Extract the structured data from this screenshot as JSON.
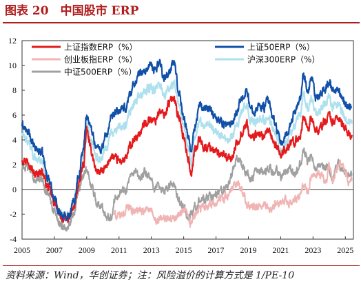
{
  "figure": {
    "title": "图表 20　中国股市 ERP",
    "source": "资料来源：Wind，华创证券；注：风险溢价的计算方式是 1/PE-10"
  },
  "colors": {
    "title": "#b01c1c",
    "rule": "#b01c1c"
  },
  "chart_data": {
    "type": "line",
    "title": "",
    "xlabel": "",
    "ylabel": "",
    "xlim": [
      2005.0,
      2025.5
    ],
    "ylim": [
      -4,
      12
    ],
    "x_ticks": [
      "2005",
      "2007",
      "2009",
      "2011",
      "2013",
      "2015",
      "2017",
      "2019",
      "2021",
      "2023",
      "2025"
    ],
    "y_ticks": [
      "-4",
      "-2",
      "0",
      "2",
      "4",
      "6",
      "8",
      "10",
      "12"
    ],
    "grid": false,
    "legend_position": "top",
    "series": [
      {
        "name": "上证指数ERP（%）",
        "color": "#e41a1c",
        "width": 2.2,
        "x": [
          "2005.0",
          "2005.4",
          "2005.8",
          "2006.2",
          "2006.6",
          "2007.0",
          "2007.3",
          "2007.6",
          "2007.9",
          "2008.2",
          "2008.5",
          "2008.8",
          "2009.0",
          "2009.3",
          "2009.6",
          "2009.9",
          "2010.2",
          "2010.5",
          "2010.8",
          "2011.1",
          "2011.4",
          "2011.7",
          "2012.0",
          "2012.3",
          "2012.6",
          "2012.9",
          "2013.2",
          "2013.5",
          "2013.8",
          "2014.1",
          "2014.4",
          "2014.7",
          "2015.0",
          "2015.3",
          "2015.45",
          "2015.7",
          "2016.0",
          "2016.3",
          "2016.6",
          "2016.9",
          "2017.2",
          "2017.5",
          "2017.8",
          "2018.0",
          "2018.3",
          "2018.6",
          "2018.9",
          "2019.1",
          "2019.4",
          "2019.7",
          "2020.0",
          "2020.2",
          "2020.5",
          "2020.8",
          "2021.0",
          "2021.3",
          "2021.6",
          "2021.9",
          "2022.2",
          "2022.4",
          "2022.7",
          "2022.9",
          "2023.2",
          "2023.5",
          "2023.8",
          "2024.0",
          "2024.2",
          "2024.5",
          "2024.8",
          "2025.1",
          "2025.4"
        ],
        "y": [
          2.5,
          2.3,
          1.2,
          1.5,
          0.2,
          -1.0,
          -2.0,
          -2.4,
          -2.3,
          -1.5,
          0.3,
          2.0,
          4.7,
          3.0,
          1.5,
          1.4,
          1.7,
          2.7,
          2.4,
          2.3,
          2.4,
          3.5,
          4.0,
          4.6,
          5.3,
          5.7,
          5.5,
          6.3,
          6.0,
          7.0,
          7.5,
          5.8,
          4.2,
          2.5,
          1.1,
          3.2,
          4.1,
          3.3,
          3.5,
          3.2,
          2.7,
          2.8,
          2.4,
          2.6,
          3.7,
          4.6,
          5.3,
          4.2,
          4.3,
          4.5,
          4.1,
          4.8,
          3.9,
          3.4,
          2.8,
          3.3,
          3.6,
          3.9,
          4.3,
          5.8,
          5.0,
          5.7,
          4.6,
          5.1,
          5.6,
          6.0,
          5.4,
          5.8,
          5.3,
          4.6,
          4.4
        ]
      },
      {
        "name": "上证50ERP（%）",
        "color": "#1150a8",
        "width": 2.2,
        "x": [
          "2005.0",
          "2005.4",
          "2005.8",
          "2006.2",
          "2006.6",
          "2007.0",
          "2007.3",
          "2007.6",
          "2007.9",
          "2008.2",
          "2008.5",
          "2008.8",
          "2009.0",
          "2009.3",
          "2009.6",
          "2009.9",
          "2010.2",
          "2010.5",
          "2010.8",
          "2011.1",
          "2011.4",
          "2011.7",
          "2012.0",
          "2012.3",
          "2012.6",
          "2012.9",
          "2013.2",
          "2013.5",
          "2013.8",
          "2014.1",
          "2014.4",
          "2014.7",
          "2015.0",
          "2015.3",
          "2015.45",
          "2015.7",
          "2016.0",
          "2016.3",
          "2016.6",
          "2016.9",
          "2017.2",
          "2017.5",
          "2017.8",
          "2018.0",
          "2018.3",
          "2018.6",
          "2018.9",
          "2019.1",
          "2019.4",
          "2019.7",
          "2020.0",
          "2020.2",
          "2020.5",
          "2020.8",
          "2021.0",
          "2021.3",
          "2021.6",
          "2021.9",
          "2022.2",
          "2022.4",
          "2022.7",
          "2022.9",
          "2023.2",
          "2023.5",
          "2023.8",
          "2024.0",
          "2024.2",
          "2024.5",
          "2024.8",
          "2025.1",
          "2025.4"
        ],
        "y": [
          5.2,
          4.5,
          3.3,
          3.0,
          1.0,
          -0.6,
          -1.8,
          -2.2,
          -2.0,
          -1.0,
          1.2,
          3.3,
          6.0,
          4.8,
          3.4,
          3.3,
          4.3,
          5.6,
          6.2,
          6.4,
          6.5,
          7.8,
          8.7,
          9.4,
          9.5,
          10.0,
          9.6,
          10.3,
          9.0,
          9.5,
          10.2,
          8.0,
          5.8,
          4.2,
          3.1,
          5.2,
          6.8,
          6.4,
          6.6,
          6.0,
          5.6,
          5.3,
          5.2,
          5.5,
          6.4,
          7.4,
          8.0,
          6.6,
          6.4,
          6.8,
          6.6,
          7.2,
          5.9,
          4.8,
          3.6,
          4.3,
          5.2,
          6.4,
          7.4,
          9.3,
          7.8,
          8.9,
          7.3,
          7.8,
          8.2,
          8.7,
          7.9,
          8.0,
          7.4,
          6.8,
          6.6
        ]
      },
      {
        "name": "创业板指ERP（%）",
        "color": "#f0b4b4",
        "width": 2.0,
        "x": [
          "2010.7",
          "2011.0",
          "2011.3",
          "2011.6",
          "2011.9",
          "2012.2",
          "2012.5",
          "2012.8",
          "2013.0",
          "2013.3",
          "2013.6",
          "2013.9",
          "2014.2",
          "2014.5",
          "2014.8",
          "2015.1",
          "2015.4",
          "2015.7",
          "2016.0",
          "2016.3",
          "2016.6",
          "2016.9",
          "2017.2",
          "2017.5",
          "2017.8",
          "2018.1",
          "2018.4",
          "2018.7",
          "2018.9",
          "2019.2",
          "2019.5",
          "2019.8",
          "2020.1",
          "2020.4",
          "2020.7",
          "2021.0",
          "2021.3",
          "2021.6",
          "2021.9",
          "2022.2",
          "2022.4",
          "2022.7",
          "2022.9",
          "2023.2",
          "2023.5",
          "2023.8",
          "2024.0",
          "2024.2",
          "2024.5",
          "2024.8",
          "2025.0",
          "2025.2",
          "2025.4"
        ],
        "y": [
          -2.0,
          -2.2,
          -1.9,
          -1.3,
          -1.8,
          -1.6,
          -1.9,
          -1.4,
          -1.9,
          -2.6,
          -2.4,
          -2.3,
          -2.5,
          -2.2,
          -2.0,
          -1.8,
          -2.8,
          -2.0,
          -1.6,
          -1.3,
          -1.2,
          -1.1,
          -0.8,
          -0.6,
          -0.4,
          0.2,
          0.5,
          -0.4,
          -1.3,
          -1.4,
          -1.5,
          -1.4,
          -1.4,
          -1.6,
          -1.2,
          -1.3,
          -0.8,
          -1.2,
          -0.9,
          -0.4,
          0.3,
          -0.1,
          0.8,
          1.4,
          1.1,
          0.7,
          1.9,
          0.8,
          1.7,
          2.2,
          1.3,
          0.6,
          0.7
        ]
      },
      {
        "name": "沪深300ERP（%）",
        "color": "#aee0ee",
        "width": 2.2,
        "x": [
          "2005.0",
          "2005.4",
          "2005.8",
          "2006.2",
          "2006.6",
          "2007.0",
          "2007.3",
          "2007.6",
          "2007.9",
          "2008.2",
          "2008.5",
          "2008.8",
          "2009.0",
          "2009.3",
          "2009.6",
          "2009.9",
          "2010.2",
          "2010.5",
          "2010.8",
          "2011.1",
          "2011.4",
          "2011.7",
          "2012.0",
          "2012.3",
          "2012.6",
          "2012.9",
          "2013.2",
          "2013.5",
          "2013.8",
          "2014.1",
          "2014.4",
          "2014.7",
          "2015.0",
          "2015.3",
          "2015.45",
          "2015.7",
          "2016.0",
          "2016.3",
          "2016.6",
          "2016.9",
          "2017.2",
          "2017.5",
          "2017.8",
          "2018.0",
          "2018.3",
          "2018.6",
          "2018.9",
          "2019.1",
          "2019.4",
          "2019.7",
          "2020.0",
          "2020.2",
          "2020.5",
          "2020.8",
          "2021.0",
          "2021.3",
          "2021.6",
          "2021.9",
          "2022.2",
          "2022.4",
          "2022.7",
          "2022.9",
          "2023.2",
          "2023.5",
          "2023.8",
          "2024.0",
          "2024.2",
          "2024.5",
          "2024.8",
          "2025.1",
          "2025.4"
        ],
        "y": [
          4.4,
          3.8,
          2.6,
          2.3,
          0.7,
          -0.8,
          -1.9,
          -2.3,
          -2.1,
          -1.2,
          0.9,
          2.7,
          5.2,
          4.0,
          2.6,
          2.5,
          3.3,
          4.5,
          4.9,
          5.0,
          5.1,
          6.3,
          7.0,
          7.6,
          7.9,
          8.2,
          7.9,
          8.6,
          7.6,
          8.1,
          8.7,
          6.8,
          4.9,
          3.4,
          2.2,
          4.3,
          5.6,
          5.1,
          5.3,
          4.8,
          4.4,
          4.2,
          4.1,
          4.4,
          5.3,
          6.3,
          6.8,
          5.6,
          5.4,
          5.8,
          5.5,
          6.1,
          5.0,
          4.1,
          3.1,
          3.7,
          4.4,
          5.2,
          6.0,
          7.6,
          6.4,
          7.3,
          6.0,
          6.5,
          6.9,
          7.4,
          6.6,
          6.9,
          6.3,
          5.4,
          5.3
        ]
      },
      {
        "name": "中证500ERP（%）",
        "color": "#a0a0a0",
        "width": 2.0,
        "x": [
          "2005.0",
          "2005.4",
          "2005.8",
          "2006.2",
          "2006.6",
          "2007.0",
          "2007.3",
          "2007.6",
          "2007.9",
          "2008.2",
          "2008.5",
          "2008.8",
          "2009.0",
          "2009.3",
          "2009.6",
          "2009.9",
          "2010.2",
          "2010.5",
          "2010.8",
          "2011.1",
          "2011.4",
          "2011.7",
          "2012.0",
          "2012.3",
          "2012.6",
          "2012.9",
          "2013.2",
          "2013.5",
          "2013.8",
          "2014.1",
          "2014.4",
          "2014.7",
          "2015.0",
          "2015.3",
          "2015.45",
          "2015.7",
          "2016.0",
          "2016.3",
          "2016.6",
          "2016.9",
          "2017.2",
          "2017.5",
          "2017.8",
          "2018.0",
          "2018.3",
          "2018.6",
          "2018.9",
          "2019.1",
          "2019.4",
          "2019.7",
          "2020.0",
          "2020.2",
          "2020.5",
          "2020.8",
          "2021.0",
          "2021.3",
          "2021.6",
          "2021.9",
          "2022.2",
          "2022.4",
          "2022.7",
          "2022.9",
          "2023.2",
          "2023.5",
          "2023.8",
          "2024.0",
          "2024.2",
          "2024.5",
          "2024.8",
          "2025.1",
          "2025.4"
        ],
        "y": [
          1.9,
          1.7,
          0.8,
          0.9,
          -0.4,
          -1.7,
          -2.7,
          -3.0,
          -2.8,
          -1.9,
          -0.1,
          1.1,
          1.6,
          0.4,
          -1.0,
          -1.4,
          -2.0,
          -2.2,
          -0.5,
          -0.1,
          0.0,
          0.9,
          1.3,
          0.8,
          1.4,
          0.9,
          0.2,
          0.3,
          -0.2,
          0.3,
          0.4,
          -0.9,
          -1.5,
          -2.3,
          -2.1,
          -1.3,
          -1.0,
          -0.8,
          -0.6,
          -0.5,
          -0.2,
          0.0,
          0.4,
          1.3,
          2.5,
          2.1,
          1.4,
          0.8,
          1.3,
          1.6,
          1.2,
          1.8,
          1.4,
          1.5,
          1.1,
          1.3,
          1.6,
          1.2,
          2.0,
          3.1,
          2.2,
          2.7,
          1.6,
          2.0,
          1.7,
          1.8,
          0.8,
          2.0,
          1.8,
          1.2,
          1.3
        ]
      }
    ]
  }
}
